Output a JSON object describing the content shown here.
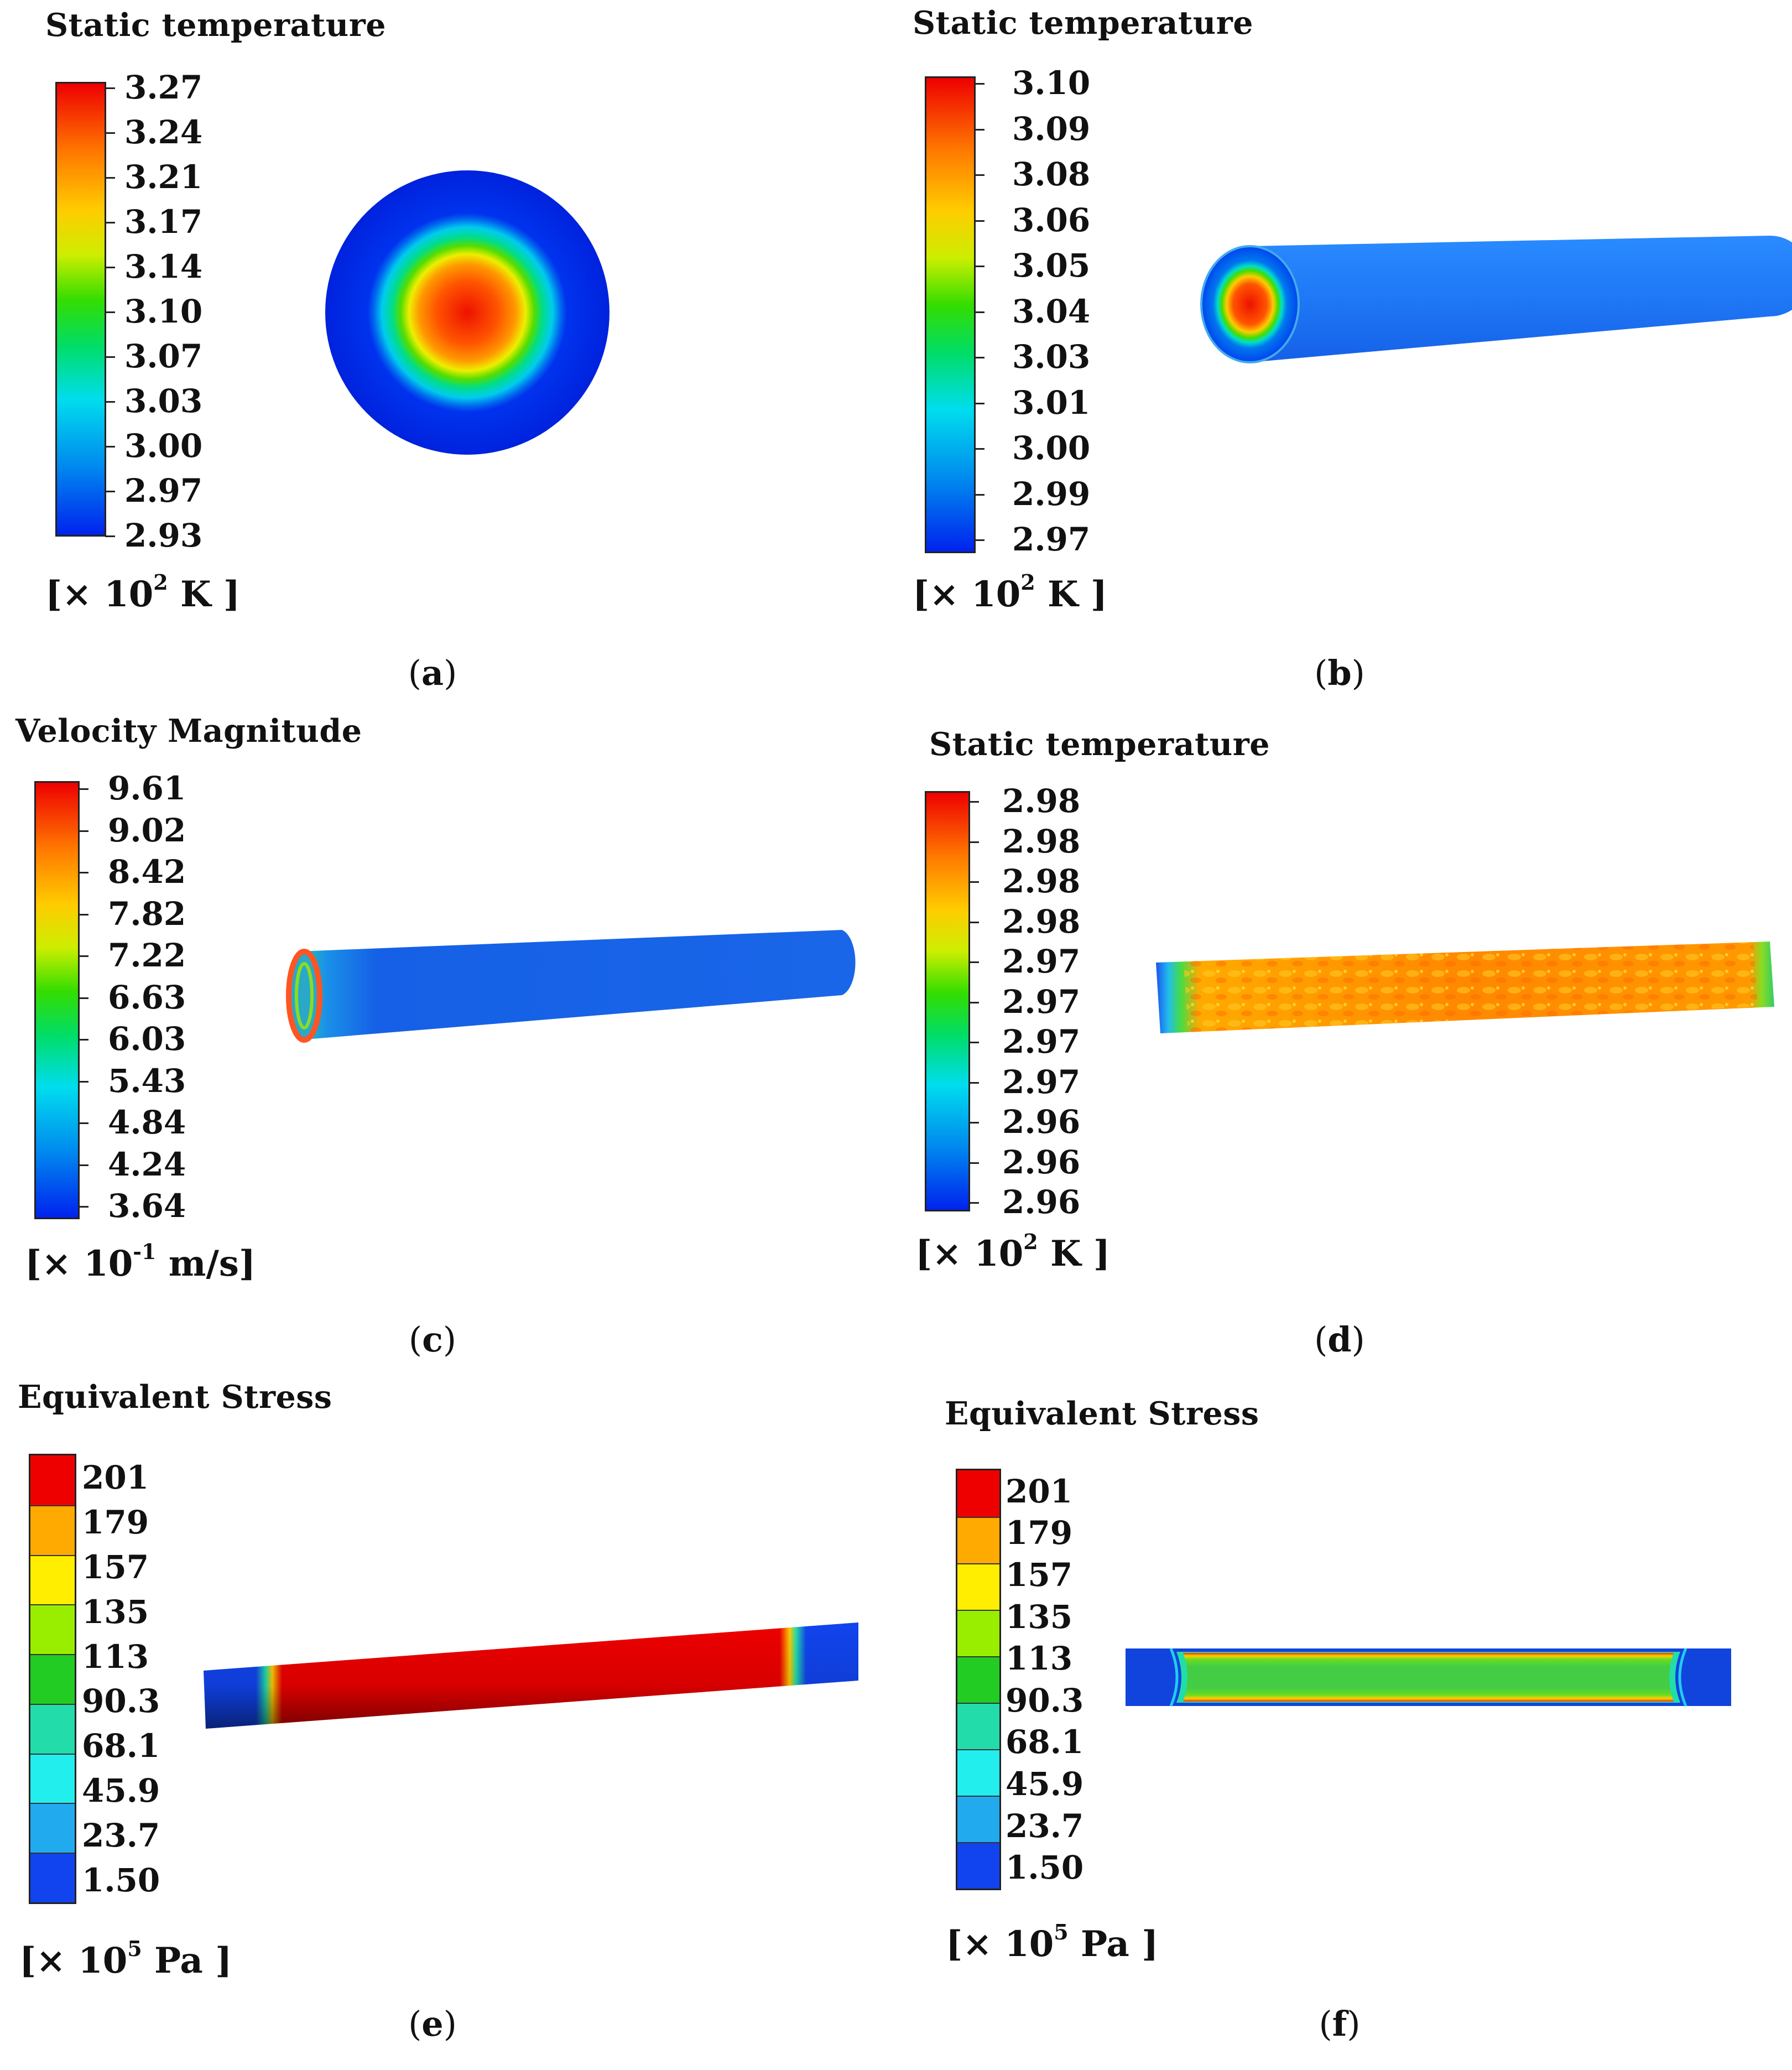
{
  "panels": {
    "a": {
      "title": "Static temperature",
      "ticks": [
        "3.27",
        "3.24",
        "3.21",
        "3.17",
        "3.14",
        "3.10",
        "3.07",
        "3.03",
        "3.00",
        "2.97",
        "2.93"
      ],
      "unit_prefix": "[× 10",
      "unit_exp": "2",
      "unit_suffix": " K ]",
      "caption_letter": "a"
    },
    "b": {
      "title": "Static temperature",
      "ticks": [
        "3.10",
        "3.09",
        "3.08",
        "3.06",
        "3.05",
        "3.04",
        "3.03",
        "3.01",
        "3.00",
        "2.99",
        "2.97"
      ],
      "unit_prefix": "[× 10",
      "unit_exp": "2",
      "unit_suffix": " K ]",
      "caption_letter": "b"
    },
    "c": {
      "title": "Velocity Magnitude",
      "ticks": [
        "9.61",
        "9.02",
        "8.42",
        "7.82",
        "7.22",
        "6.63",
        "6.03",
        "5.43",
        "4.84",
        "4.24",
        "3.64"
      ],
      "unit_prefix": "[× 10",
      "unit_exp": "-1",
      "unit_suffix": " m/s]",
      "caption_letter": "c"
    },
    "d": {
      "title": "Static temperature",
      "ticks": [
        "2.98",
        "2.98",
        "2.98",
        "2.98",
        "2.97",
        "2.97",
        "2.97",
        "2.97",
        "2.96",
        "2.96",
        "2.96"
      ],
      "unit_prefix": "[× 10",
      "unit_exp": "2",
      "unit_suffix": " K ]",
      "caption_letter": "d"
    },
    "e": {
      "title": "Equivalent Stress",
      "ticks": [
        "201",
        "179",
        "157",
        "135",
        "113",
        "90.3",
        "68.1",
        "45.9",
        "23.7",
        "1.50"
      ],
      "unit_prefix": "[× 10",
      "unit_exp": "5",
      "unit_suffix": " Pa ]",
      "caption_letter": "e"
    },
    "f": {
      "title": "Equivalent Stress",
      "ticks": [
        "201",
        "179",
        "157",
        "135",
        "113",
        "90.3",
        "68.1",
        "45.9",
        "23.7",
        "1.50"
      ],
      "unit_prefix": "[× 10",
      "unit_exp": "5",
      "unit_suffix": " Pa ]",
      "caption_letter": "f"
    }
  },
  "colors": {
    "stress_bands": [
      "#ee0000",
      "#ffaa00",
      "#ffee00",
      "#99ee00",
      "#22cc22",
      "#22ddaa",
      "#22eeee",
      "#22aaee",
      "#1144ee"
    ],
    "red": "#ee0000",
    "blue": "#0022dd"
  }
}
